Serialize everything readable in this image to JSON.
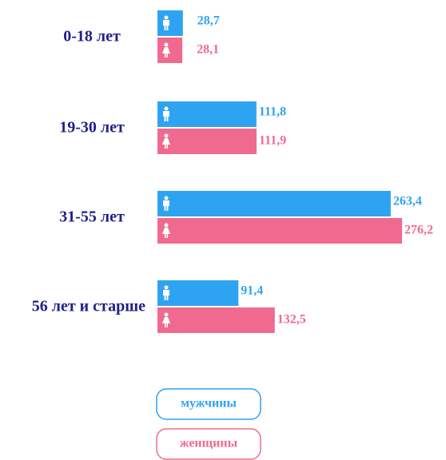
{
  "chart_data": {
    "type": "bar",
    "orientation": "horizontal",
    "categories": [
      "0-18 лет",
      "19-30  лет",
      "31-55  лет",
      "56 лет и старше"
    ],
    "series": [
      {
        "name": "мужчины",
        "color": "#2ea3f2",
        "values": [
          28.7,
          111.8,
          263.4,
          91.4
        ],
        "value_labels": [
          "28,7",
          "111,8",
          "263,4",
          "91,4"
        ]
      },
      {
        "name": "женщины",
        "color": "#f06a8f",
        "values": [
          28.1,
          111.9,
          276.2,
          132.5
        ],
        "value_labels": [
          "28,1",
          "111,9",
          "276,2",
          "132,5"
        ]
      }
    ],
    "legend": "bottom"
  }
}
